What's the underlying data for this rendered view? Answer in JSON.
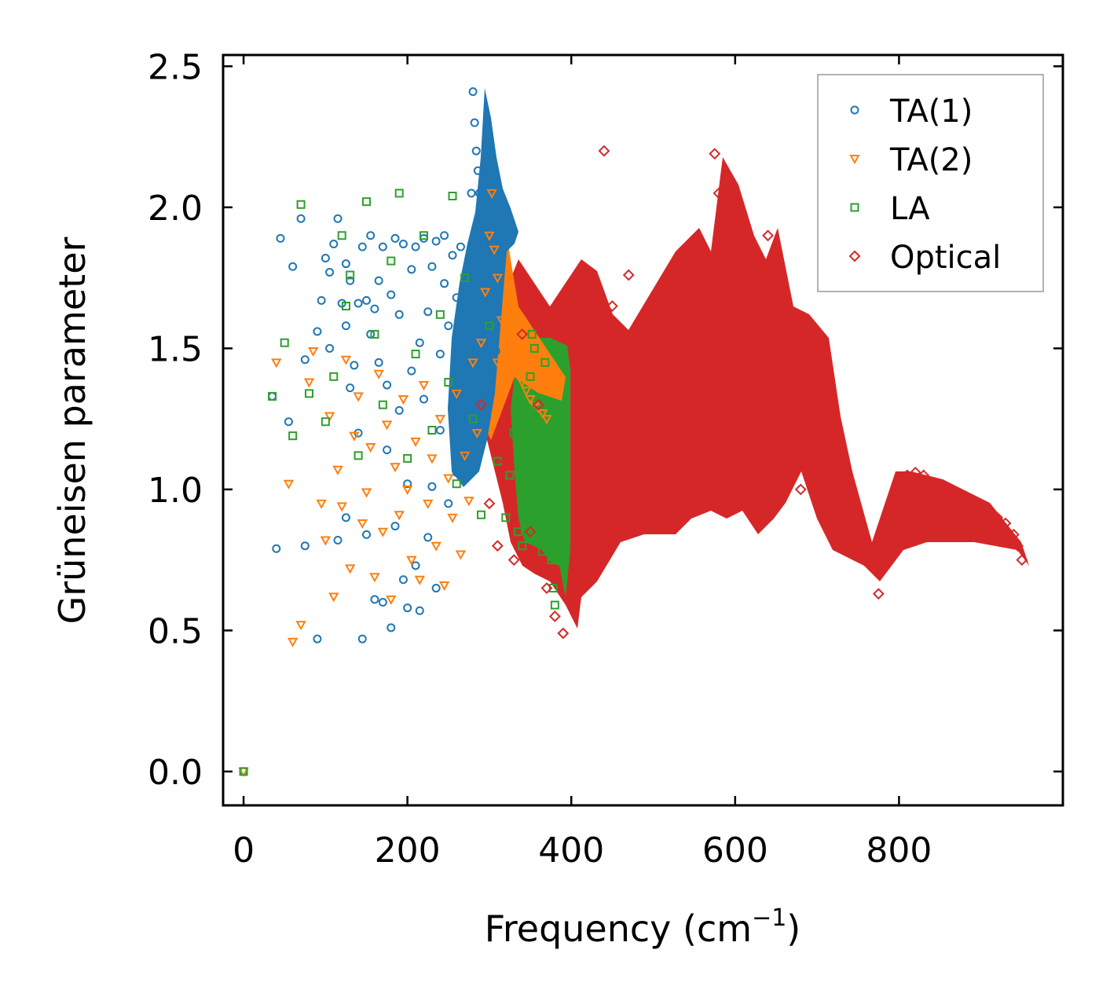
{
  "chart_data": {
    "type": "scatter",
    "title": "",
    "xlabel": "Frequency (cm",
    "xlabel_sup": "−1",
    "xlabel_suffix": ")",
    "ylabel": "Grüneisen parameter",
    "xlim": [
      -25,
      1000
    ],
    "ylim": [
      -0.12,
      2.54
    ],
    "xticks": [
      0,
      200,
      400,
      600,
      800
    ],
    "xtick_labels": [
      "0",
      "200",
      "400",
      "600",
      "800"
    ],
    "yticks": [
      0.0,
      0.5,
      1.0,
      1.5,
      2.0,
      2.5
    ],
    "ytick_labels": [
      "0.0",
      "0.5",
      "1.0",
      "1.5",
      "2.0",
      "2.5"
    ],
    "grid": false,
    "legend_position": "top-right",
    "series": [
      {
        "name": "TA(1)",
        "color": "#1f77b4",
        "marker": "circle",
        "points": [
          [
            0,
            0
          ],
          [
            35,
            1.33
          ],
          [
            40,
            0.79
          ],
          [
            45,
            1.89
          ],
          [
            55,
            1.24
          ],
          [
            60,
            1.79
          ],
          [
            70,
            1.96
          ],
          [
            75,
            0.8
          ],
          [
            75,
            1.46
          ],
          [
            90,
            1.56
          ],
          [
            90,
            0.47
          ],
          [
            95,
            1.67
          ],
          [
            100,
            1.82
          ],
          [
            105,
            1.5
          ],
          [
            105,
            1.77
          ],
          [
            110,
            1.87
          ],
          [
            115,
            1.96
          ],
          [
            115,
            0.82
          ],
          [
            120,
            1.66
          ],
          [
            125,
            1.8
          ],
          [
            125,
            1.58
          ],
          [
            125,
            0.9
          ],
          [
            130,
            1.36
          ],
          [
            130,
            1.74
          ],
          [
            135,
            1.44
          ],
          [
            140,
            1.66
          ],
          [
            140,
            1.2
          ],
          [
            145,
            0.47
          ],
          [
            145,
            1.86
          ],
          [
            150,
            1.67
          ],
          [
            150,
            0.84
          ],
          [
            155,
            1.9
          ],
          [
            155,
            1.55
          ],
          [
            160,
            0.61
          ],
          [
            160,
            1.64
          ],
          [
            165,
            1.74
          ],
          [
            165,
            1.45
          ],
          [
            170,
            0.6
          ],
          [
            170,
            1.86
          ],
          [
            175,
            1.37
          ],
          [
            175,
            1.14
          ],
          [
            180,
            1.69
          ],
          [
            180,
            0.51
          ],
          [
            185,
            1.89
          ],
          [
            185,
            0.87
          ],
          [
            190,
            1.28
          ],
          [
            190,
            1.62
          ],
          [
            195,
            0.68
          ],
          [
            195,
            1.87
          ],
          [
            200,
            1.02
          ],
          [
            200,
            0.58
          ],
          [
            205,
            1.78
          ],
          [
            205,
            1.42
          ],
          [
            210,
            0.73
          ],
          [
            210,
            1.86
          ],
          [
            215,
            1.52
          ],
          [
            215,
            0.57
          ],
          [
            220,
            1.89
          ],
          [
            220,
            1.32
          ],
          [
            225,
            1.63
          ],
          [
            225,
            0.83
          ],
          [
            230,
            1.79
          ],
          [
            230,
            1.01
          ],
          [
            235,
            0.65
          ],
          [
            235,
            1.88
          ],
          [
            240,
            1.48
          ],
          [
            240,
            1.21
          ],
          [
            245,
            1.73
          ],
          [
            245,
            1.9
          ],
          [
            250,
            1.58
          ],
          [
            250,
            0.95
          ],
          [
            255,
            1.83
          ],
          [
            255,
            1.27
          ],
          [
            260,
            1.68
          ],
          [
            260,
            1.06
          ],
          [
            265,
            1.86
          ],
          [
            265,
            1.38
          ],
          [
            270,
            1.72
          ],
          [
            270,
            1.52
          ],
          [
            275,
            1.66
          ],
          [
            275,
            1.45
          ],
          [
            278,
            2.05
          ],
          [
            280,
            2.41
          ],
          [
            282,
            2.3
          ],
          [
            284,
            2.2
          ],
          [
            286,
            2.13
          ],
          [
            288,
            2.05
          ],
          [
            290,
            1.95
          ],
          [
            292,
            1.88
          ],
          [
            294,
            1.8
          ],
          [
            296,
            1.74
          ],
          [
            298,
            1.69
          ],
          [
            300,
            1.64
          ],
          [
            302,
            1.6
          ],
          [
            304,
            1.56
          ],
          [
            306,
            1.52
          ],
          [
            308,
            1.49
          ],
          [
            300,
            1.85
          ],
          [
            305,
            1.82
          ],
          [
            310,
            1.9
          ]
        ]
      },
      {
        "name": "TA(2)",
        "color": "#ff7f0e",
        "marker": "triangle-down",
        "points": [
          [
            0,
            0
          ],
          [
            40,
            1.45
          ],
          [
            55,
            1.02
          ],
          [
            60,
            0.46
          ],
          [
            70,
            0.52
          ],
          [
            80,
            1.38
          ],
          [
            85,
            1.49
          ],
          [
            95,
            0.95
          ],
          [
            100,
            0.82
          ],
          [
            105,
            1.26
          ],
          [
            110,
            0.62
          ],
          [
            115,
            1.07
          ],
          [
            120,
            0.94
          ],
          [
            125,
            1.46
          ],
          [
            130,
            0.72
          ],
          [
            135,
            1.19
          ],
          [
            140,
            1.33
          ],
          [
            145,
            0.88
          ],
          [
            150,
            0.99
          ],
          [
            155,
            1.15
          ],
          [
            160,
            0.69
          ],
          [
            165,
            1.41
          ],
          [
            170,
            0.85
          ],
          [
            175,
            1.23
          ],
          [
            180,
            0.61
          ],
          [
            185,
            1.08
          ],
          [
            190,
            0.91
          ],
          [
            195,
            1.32
          ],
          [
            200,
            1.0
          ],
          [
            205,
            0.75
          ],
          [
            210,
            1.17
          ],
          [
            215,
            0.68
          ],
          [
            220,
            1.37
          ],
          [
            225,
            0.95
          ],
          [
            230,
            1.11
          ],
          [
            235,
            0.8
          ],
          [
            240,
            1.25
          ],
          [
            245,
            0.66
          ],
          [
            250,
            1.04
          ],
          [
            255,
            0.9
          ],
          [
            260,
            1.34
          ],
          [
            265,
            0.77
          ],
          [
            270,
            1.12
          ],
          [
            275,
            0.96
          ],
          [
            280,
            1.45
          ],
          [
            285,
            1.2
          ],
          [
            290,
            1.52
          ],
          [
            295,
            1.7
          ],
          [
            300,
            1.9
          ],
          [
            303,
            2.05
          ],
          [
            306,
            1.85
          ],
          [
            310,
            1.75
          ],
          [
            315,
            1.6
          ],
          [
            320,
            1.55
          ],
          [
            325,
            1.5
          ],
          [
            330,
            1.45
          ],
          [
            335,
            1.42
          ],
          [
            340,
            1.38
          ],
          [
            345,
            1.35
          ],
          [
            350,
            1.32
          ],
          [
            355,
            1.3
          ],
          [
            360,
            1.29
          ],
          [
            365,
            1.27
          ],
          [
            370,
            1.25
          ],
          [
            310,
            1.45
          ],
          [
            320,
            1.35
          ]
        ]
      },
      {
        "name": "LA",
        "color": "#2ca02c",
        "marker": "square",
        "points": [
          [
            0,
            0
          ],
          [
            35,
            1.33
          ],
          [
            50,
            1.52
          ],
          [
            60,
            1.19
          ],
          [
            70,
            2.01
          ],
          [
            80,
            1.34
          ],
          [
            100,
            1.24
          ],
          [
            110,
            1.4
          ],
          [
            120,
            1.9
          ],
          [
            125,
            1.65
          ],
          [
            130,
            1.76
          ],
          [
            140,
            1.12
          ],
          [
            150,
            2.02
          ],
          [
            160,
            1.55
          ],
          [
            170,
            1.3
          ],
          [
            180,
            1.81
          ],
          [
            190,
            2.05
          ],
          [
            200,
            1.11
          ],
          [
            210,
            1.48
          ],
          [
            220,
            1.9
          ],
          [
            230,
            1.21
          ],
          [
            240,
            1.62
          ],
          [
            250,
            1.38
          ],
          [
            255,
            2.04
          ],
          [
            260,
            1.02
          ],
          [
            270,
            1.75
          ],
          [
            280,
            1.25
          ],
          [
            290,
            0.91
          ],
          [
            300,
            1.58
          ],
          [
            310,
            1.1
          ],
          [
            320,
            0.9
          ],
          [
            325,
            1.05
          ],
          [
            330,
            1.2
          ],
          [
            335,
            0.85
          ],
          [
            340,
            0.8
          ],
          [
            345,
            1.1
          ],
          [
            350,
            1.4
          ],
          [
            352,
            1.55
          ],
          [
            355,
            1.5
          ],
          [
            358,
            1.3
          ],
          [
            360,
            1.05
          ],
          [
            362,
            0.9
          ],
          [
            365,
            0.78
          ],
          [
            368,
            1.45
          ],
          [
            370,
            1.2
          ],
          [
            372,
            1.1
          ],
          [
            374,
            0.95
          ],
          [
            376,
            0.75
          ],
          [
            378,
            0.65
          ],
          [
            380,
            0.59
          ],
          [
            380,
            1.0
          ],
          [
            382,
            0.85
          ]
        ]
      },
      {
        "name": "Optical",
        "color": "#d62728",
        "marker": "diamond",
        "points": [
          [
            290,
            1.3
          ],
          [
            300,
            0.95
          ],
          [
            310,
            0.8
          ],
          [
            320,
            1.1
          ],
          [
            330,
            0.75
          ],
          [
            340,
            1.55
          ],
          [
            350,
            0.85
          ],
          [
            360,
            1.3
          ],
          [
            370,
            0.65
          ],
          [
            380,
            0.55
          ],
          [
            390,
            0.49
          ],
          [
            400,
            0.6
          ],
          [
            410,
            1.1
          ],
          [
            420,
            1.55
          ],
          [
            430,
            1.5
          ],
          [
            440,
            2.2
          ],
          [
            445,
            1.28
          ],
          [
            450,
            1.65
          ],
          [
            460,
            1.4
          ],
          [
            470,
            1.76
          ],
          [
            480,
            1.3
          ],
          [
            490,
            1.55
          ],
          [
            500,
            1.0
          ],
          [
            510,
            1.4
          ],
          [
            520,
            1.7
          ],
          [
            530,
            1.3
          ],
          [
            540,
            1.85
          ],
          [
            550,
            1.75
          ],
          [
            560,
            1.2
          ],
          [
            570,
            1.0
          ],
          [
            575,
            2.19
          ],
          [
            580,
            2.05
          ],
          [
            590,
            1.6
          ],
          [
            600,
            1.2
          ],
          [
            610,
            1.75
          ],
          [
            620,
            1.15
          ],
          [
            630,
            1.05
          ],
          [
            640,
            1.9
          ],
          [
            650,
            1.7
          ],
          [
            660,
            1.3
          ],
          [
            670,
            1.55
          ],
          [
            680,
            1.0
          ],
          [
            690,
            1.5
          ],
          [
            700,
            1.55
          ],
          [
            710,
            1.2
          ],
          [
            720,
            0.9
          ],
          [
            730,
            0.85
          ],
          [
            740,
            0.8
          ],
          [
            750,
            0.77
          ],
          [
            760,
            0.75
          ],
          [
            770,
            0.74
          ],
          [
            775,
            0.63
          ],
          [
            780,
            0.72
          ],
          [
            790,
            0.85
          ],
          [
            800,
            0.95
          ],
          [
            810,
            1.05
          ],
          [
            820,
            1.06
          ],
          [
            830,
            1.05
          ],
          [
            840,
            1.02
          ],
          [
            850,
            1.0
          ],
          [
            860,
            0.99
          ],
          [
            870,
            0.97
          ],
          [
            880,
            0.95
          ],
          [
            890,
            0.94
          ],
          [
            900,
            0.93
          ],
          [
            910,
            0.92
          ],
          [
            920,
            0.9
          ],
          [
            930,
            0.88
          ],
          [
            940,
            0.84
          ],
          [
            945,
            0.8
          ],
          [
            950,
            0.75
          ]
        ]
      }
    ]
  }
}
